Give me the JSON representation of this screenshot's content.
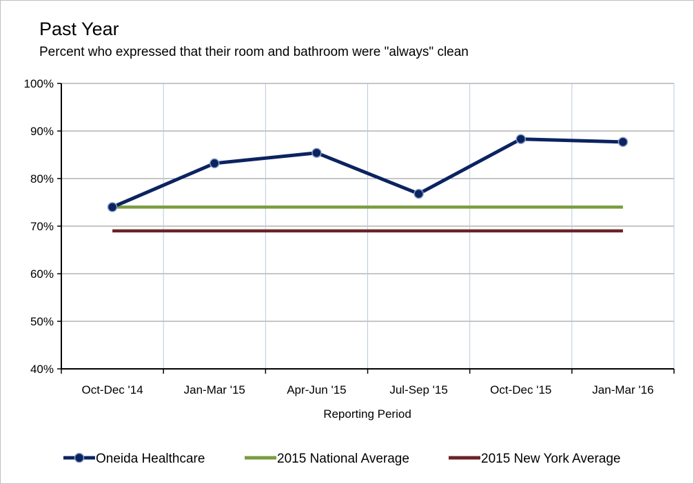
{
  "chart_data": {
    "type": "line",
    "title": "Past Year",
    "subtitle": "Percent who expressed that their room and bathroom were \"always\" clean",
    "xlabel": "Reporting Period",
    "ylabel": "",
    "categories": [
      "Oct-Dec '14",
      "Jan-Mar '15",
      "Apr-Jun '15",
      "Jul-Sep '15",
      "Oct-Dec '15",
      "Jan-Mar '16"
    ],
    "ylim": [
      40,
      100
    ],
    "yticks": [
      "40%",
      "50%",
      "60%",
      "70%",
      "80%",
      "90%",
      "100%"
    ],
    "ytick_values": [
      40,
      50,
      60,
      70,
      80,
      90,
      100
    ],
    "grid": true,
    "legend_position": "bottom",
    "series": [
      {
        "name": "Oneida Healthcare",
        "values": [
          74,
          83.2,
          85.4,
          76.8,
          88.3,
          87.7
        ],
        "color": "#0b2360",
        "markers": true
      },
      {
        "name": "2015 National Average",
        "values": [
          74,
          74,
          74,
          74,
          74,
          74
        ],
        "color": "#7b9c3f",
        "markers": false
      },
      {
        "name": "2015 New York Average",
        "values": [
          69,
          69,
          69,
          69,
          69,
          69
        ],
        "color": "#6b2226",
        "markers": false
      }
    ]
  }
}
